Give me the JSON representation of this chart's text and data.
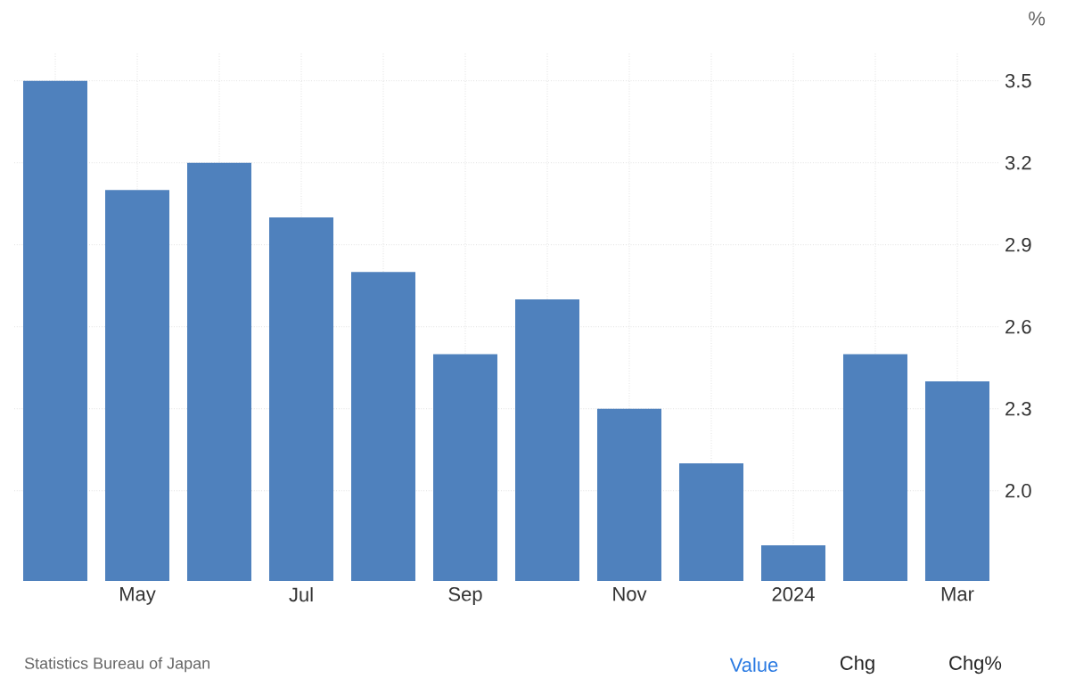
{
  "chart_data": {
    "type": "bar",
    "ylabel": "%",
    "categories": [
      null,
      "May",
      null,
      "Jul",
      null,
      "Sep",
      null,
      "Nov",
      null,
      "2024",
      null,
      "Mar"
    ],
    "values": [
      3.5,
      3.1,
      3.2,
      3.0,
      2.8,
      2.5,
      2.7,
      2.3,
      2.1,
      1.8,
      2.5,
      2.4
    ],
    "color": "#4f81bd",
    "ylim": [
      1.67,
      3.6
    ],
    "yticks": [
      {
        "value": 2,
        "label": "2.0"
      },
      2.3,
      2.6,
      2.9,
      3.2,
      3.5
    ],
    "grid": true,
    "annotations": [
      "Statistics Bureau of Japan",
      "Value",
      "Chg",
      "Chg%"
    ]
  }
}
